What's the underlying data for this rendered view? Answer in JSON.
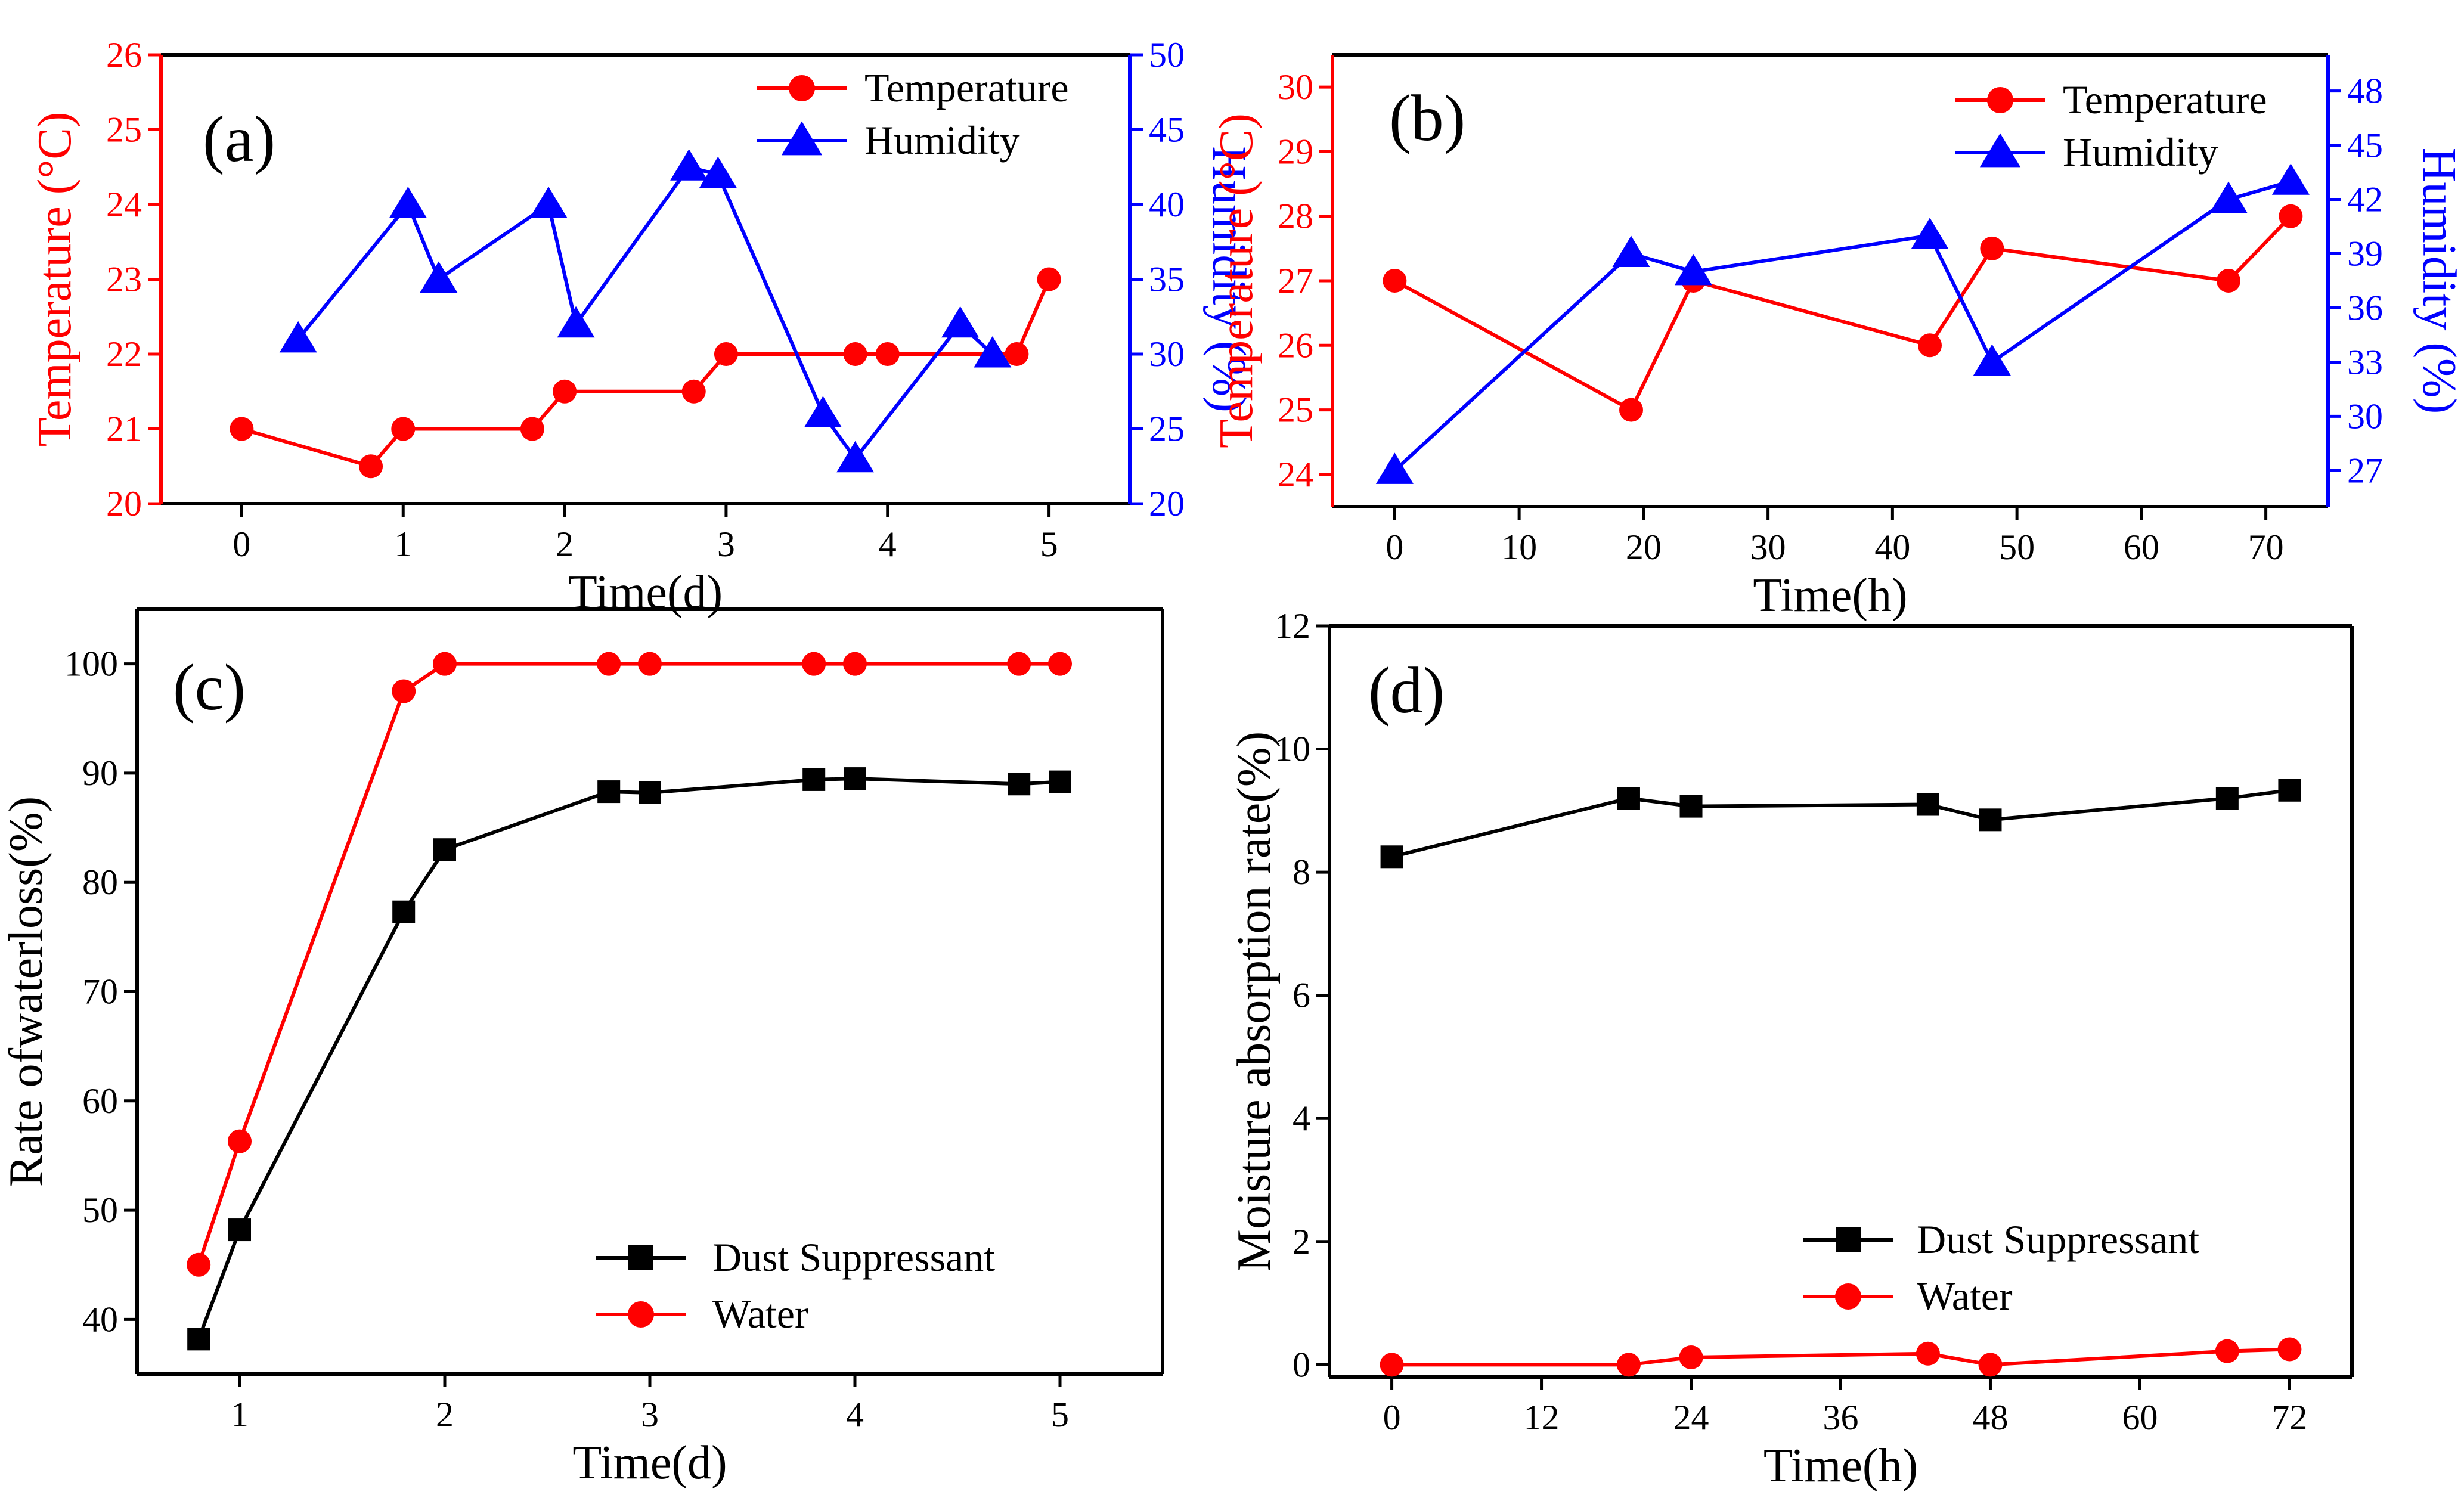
{
  "chart_data": [
    {
      "type": "line",
      "panel": "(a)",
      "x": [
        0,
        0.8,
        1,
        1.8,
        2,
        2.8,
        3,
        3.8,
        4,
        4.8,
        5
      ],
      "xlabel": "Time(d)",
      "xlim": [
        -0.5,
        5.5
      ],
      "xticks": [
        0,
        1,
        2,
        3,
        4,
        5
      ],
      "ylabel": "Temperature (°C)",
      "ylim": [
        20,
        26
      ],
      "yticks": [
        20,
        21,
        22,
        23,
        24,
        25,
        26
      ],
      "y2label": "Humidity (%)",
      "y2lim": [
        20,
        50
      ],
      "y2ticks": [
        20,
        25,
        30,
        35,
        40,
        45,
        50
      ],
      "legend": "top-right",
      "series": [
        {
          "name": "Temperature",
          "axis": "left",
          "color": "#ff0000",
          "marker": "circle",
          "x": [
            0,
            0.8,
            1,
            1.8,
            2,
            2.8,
            3,
            3.8,
            4,
            4.8,
            5
          ],
          "values": [
            21,
            20.5,
            21,
            21,
            21.5,
            21.5,
            22,
            22,
            22,
            22,
            23
          ]
        },
        {
          "name": "Humidity",
          "axis": "right",
          "color": "#0000ff",
          "marker": "triangle",
          "x": [
            0.35,
            1.03,
            1.22,
            1.9,
            2.07,
            2.77,
            2.95,
            3.6,
            3.8,
            4.45,
            4.65
          ],
          "values": [
            31,
            40,
            35,
            40,
            32,
            42.5,
            42,
            26,
            23,
            32,
            30
          ]
        }
      ]
    },
    {
      "type": "line",
      "panel": "(b)",
      "xlabel": "Time(h)",
      "xlim": [
        -5,
        75
      ],
      "xticks": [
        0,
        10,
        20,
        30,
        40,
        50,
        60,
        70
      ],
      "ylabel": "Temperature (°C)",
      "ylim": [
        23.5,
        30.5
      ],
      "yticks": [
        24,
        25,
        26,
        27,
        28,
        29,
        30
      ],
      "y2label": "Humidity (%)",
      "y2lim": [
        25,
        50
      ],
      "y2ticks": [
        27,
        30,
        33,
        36,
        39,
        42,
        45,
        48
      ],
      "legend": "top-right",
      "series": [
        {
          "name": "Temperature",
          "axis": "left",
          "color": "#ff0000",
          "marker": "circle",
          "x": [
            0,
            19,
            24,
            43,
            48,
            67,
            72
          ],
          "values": [
            27,
            25,
            27,
            26,
            27.5,
            27,
            28
          ]
        },
        {
          "name": "Humidity",
          "axis": "right",
          "color": "#0000ff",
          "marker": "triangle",
          "x": [
            0,
            19,
            24,
            43,
            48,
            67,
            72
          ],
          "values": [
            27,
            39,
            38,
            40,
            33,
            42,
            43
          ]
        }
      ]
    },
    {
      "type": "line",
      "panel": "(c)",
      "xlabel": "Time(d)",
      "xlim": [
        0.5,
        5.5
      ],
      "xticks": [
        1,
        2,
        3,
        4,
        5
      ],
      "ylabel": "Rate ofwaterloss(%)",
      "ylim": [
        35,
        105
      ],
      "yticks": [
        40,
        50,
        60,
        70,
        80,
        90,
        100
      ],
      "legend": "bottom-right",
      "series": [
        {
          "name": "Dust Suppressant",
          "color": "#000000",
          "marker": "square",
          "x": [
            0.8,
            1,
            1.8,
            2,
            2.8,
            3,
            3.8,
            4,
            4.8,
            5
          ],
          "values": [
            38.2,
            48.2,
            77.3,
            83,
            88.3,
            88.2,
            89.4,
            89.5,
            89,
            89.2
          ]
        },
        {
          "name": "Water",
          "color": "#ff0000",
          "marker": "circle",
          "x": [
            0.8,
            1,
            1.8,
            2,
            2.8,
            3,
            3.8,
            4,
            4.8,
            5
          ],
          "values": [
            45,
            56.3,
            97.5,
            100,
            100,
            100,
            100,
            100,
            100,
            100
          ]
        }
      ]
    },
    {
      "type": "line",
      "panel": "(d)",
      "xlabel": "Time(h)",
      "xlim": [
        -5,
        77
      ],
      "xticks": [
        0,
        12,
        24,
        36,
        48,
        60,
        72
      ],
      "ylabel": "Moisture absorption rate(%)",
      "ylim": [
        -0.2,
        12
      ],
      "yticks": [
        0,
        2,
        4,
        6,
        8,
        10,
        12
      ],
      "legend": "bottom-right",
      "series": [
        {
          "name": "Dust Suppressant",
          "color": "#000000",
          "marker": "square",
          "x": [
            0,
            19,
            24,
            43,
            48,
            67,
            72
          ],
          "values": [
            8.25,
            9.2,
            9.07,
            9.1,
            8.85,
            9.2,
            9.33
          ]
        },
        {
          "name": "Water",
          "color": "#ff0000",
          "marker": "circle",
          "x": [
            0,
            19,
            24,
            43,
            48,
            67,
            72
          ],
          "values": [
            0,
            0,
            0.12,
            0.18,
            0,
            0.22,
            0.25
          ]
        }
      ]
    }
  ]
}
